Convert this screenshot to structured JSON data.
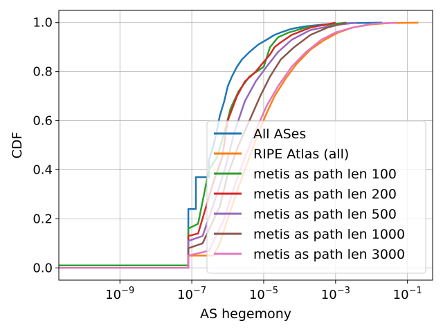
{
  "chart_data": {
    "type": "line",
    "xlabel": "AS hegemony",
    "ylabel": "CDF",
    "xscale": "log",
    "xlim": [
      2e-11,
      0.5
    ],
    "ylim": [
      -0.05,
      1.05
    ],
    "x_ticks": [
      1e-09,
      1e-07,
      1e-05,
      0.001,
      0.1
    ],
    "x_tick_labels": [
      {
        "base": "10",
        "exp": "−9"
      },
      {
        "base": "10",
        "exp": "−7"
      },
      {
        "base": "10",
        "exp": "−5"
      },
      {
        "base": "10",
        "exp": "−3"
      },
      {
        "base": "10",
        "exp": "−1"
      }
    ],
    "y_ticks": [
      0.0,
      0.2,
      0.4,
      0.6,
      0.8,
      1.0
    ],
    "y_tick_labels": [
      "0.0",
      "0.2",
      "0.4",
      "0.6",
      "0.8",
      "1.0"
    ],
    "grid": true,
    "legend_position": "lower-right",
    "series": [
      {
        "name": "All ASes",
        "color": "#1f77b4",
        "points": [
          [
            2e-11,
            0.0
          ],
          [
            8e-08,
            0.0
          ],
          [
            8e-08,
            0.24
          ],
          [
            1.3e-07,
            0.24
          ],
          [
            1.3e-07,
            0.37
          ],
          [
            3e-07,
            0.37
          ],
          [
            3e-07,
            0.44
          ],
          [
            4e-07,
            0.5
          ],
          [
            5e-07,
            0.56
          ],
          [
            6e-07,
            0.62
          ],
          [
            8e-07,
            0.68
          ],
          [
            1e-06,
            0.74
          ],
          [
            1.3e-06,
            0.78
          ],
          [
            1.8e-06,
            0.82
          ],
          [
            2.5e-06,
            0.85
          ],
          [
            4e-06,
            0.88
          ],
          [
            7e-06,
            0.91
          ],
          [
            1.2e-05,
            0.93
          ],
          [
            2e-05,
            0.95
          ],
          [
            3e-05,
            0.96
          ],
          [
            6e-05,
            0.975
          ],
          [
            0.00015,
            0.985
          ],
          [
            0.0005,
            0.993
          ],
          [
            0.003,
            0.998
          ],
          [
            0.02,
            1.0
          ]
        ]
      },
      {
        "name": "RIPE Atlas (all)",
        "color": "#ff7f0e",
        "points": [
          [
            2e-11,
            0.0
          ],
          [
            8e-08,
            0.0
          ],
          [
            8e-08,
            0.05
          ],
          [
            4e-07,
            0.05
          ],
          [
            6e-07,
            0.1
          ],
          [
            1e-06,
            0.2
          ],
          [
            2e-06,
            0.33
          ],
          [
            4e-06,
            0.45
          ],
          [
            7e-06,
            0.55
          ],
          [
            1.2e-05,
            0.63
          ],
          [
            2e-05,
            0.7
          ],
          [
            4e-05,
            0.77
          ],
          [
            8e-05,
            0.83
          ],
          [
            0.0002,
            0.89
          ],
          [
            0.0005,
            0.93
          ],
          [
            0.0012,
            0.96
          ],
          [
            0.003,
            0.98
          ],
          [
            0.01,
            0.993
          ],
          [
            0.03,
            0.998
          ],
          [
            0.2,
            1.0
          ]
        ]
      },
      {
        "name": "metis as path len 100",
        "color": "#2ca02c",
        "points": [
          [
            2e-11,
            0.01
          ],
          [
            8e-08,
            0.01
          ],
          [
            8e-08,
            0.16
          ],
          [
            1.5e-07,
            0.18
          ],
          [
            3e-07,
            0.4
          ],
          [
            5e-07,
            0.45
          ],
          [
            8e-07,
            0.55
          ],
          [
            1.2e-06,
            0.65
          ],
          [
            2e-06,
            0.72
          ],
          [
            4e-06,
            0.78
          ],
          [
            1e-05,
            0.82
          ],
          [
            1.5e-05,
            0.9
          ],
          [
            2.5e-05,
            0.94
          ],
          [
            5e-05,
            0.96
          ],
          [
            0.00015,
            0.98
          ],
          [
            0.0005,
            0.99
          ],
          [
            0.002,
            1.0
          ]
        ]
      },
      {
        "name": "metis as path len 200",
        "color": "#d62728",
        "points": [
          [
            2e-11,
            0.0
          ],
          [
            8e-08,
            0.0
          ],
          [
            8e-08,
            0.13
          ],
          [
            1.5e-07,
            0.14
          ],
          [
            4e-07,
            0.35
          ],
          [
            7e-07,
            0.45
          ],
          [
            1e-06,
            0.6
          ],
          [
            1.8e-06,
            0.7
          ],
          [
            3e-06,
            0.76
          ],
          [
            6e-06,
            0.8
          ],
          [
            1e-05,
            0.84
          ],
          [
            1.5e-05,
            0.87
          ],
          [
            2e-05,
            0.9
          ],
          [
            3e-05,
            0.92
          ],
          [
            6e-05,
            0.95
          ],
          [
            0.0002,
            0.98
          ],
          [
            0.001,
            1.0
          ]
        ]
      },
      {
        "name": "metis as path len 500",
        "color": "#9467bd",
        "points": [
          [
            2e-11,
            0.0
          ],
          [
            8e-08,
            0.0
          ],
          [
            8e-08,
            0.11
          ],
          [
            2e-07,
            0.13
          ],
          [
            5e-07,
            0.3
          ],
          [
            9e-07,
            0.42
          ],
          [
            1.5e-06,
            0.55
          ],
          [
            3e-06,
            0.68
          ],
          [
            6e-06,
            0.76
          ],
          [
            1.2e-05,
            0.82
          ],
          [
            2.5e-05,
            0.88
          ],
          [
            6e-05,
            0.93
          ],
          [
            0.0002,
            0.97
          ],
          [
            0.001,
            0.99
          ],
          [
            0.004,
            1.0
          ]
        ]
      },
      {
        "name": "metis as path len 1000",
        "color": "#8c564b",
        "points": [
          [
            2e-11,
            0.0
          ],
          [
            8e-08,
            0.0
          ],
          [
            8e-08,
            0.08
          ],
          [
            2e-07,
            0.1
          ],
          [
            6e-07,
            0.25
          ],
          [
            1e-06,
            0.38
          ],
          [
            2e-06,
            0.5
          ],
          [
            4e-06,
            0.6
          ],
          [
            8e-06,
            0.7
          ],
          [
            1.5e-05,
            0.78
          ],
          [
            3e-05,
            0.85
          ],
          [
            7e-05,
            0.9
          ],
          [
            0.0002,
            0.95
          ],
          [
            0.0006,
            0.98
          ],
          [
            0.002,
            1.0
          ]
        ]
      },
      {
        "name": "metis as path len 3000",
        "color": "#e377c2",
        "points": [
          [
            2e-11,
            0.0
          ],
          [
            8e-08,
            0.0
          ],
          [
            8e-08,
            0.05
          ],
          [
            3e-07,
            0.07
          ],
          [
            8e-07,
            0.2
          ],
          [
            1.5e-06,
            0.33
          ],
          [
            3e-06,
            0.45
          ],
          [
            6e-06,
            0.56
          ],
          [
            1.2e-05,
            0.66
          ],
          [
            2.5e-05,
            0.74
          ],
          [
            6e-05,
            0.82
          ],
          [
            0.00015,
            0.88
          ],
          [
            0.0004,
            0.93
          ],
          [
            0.001,
            0.96
          ],
          [
            0.003,
            0.98
          ],
          [
            0.01,
            0.995
          ],
          [
            0.05,
            1.0
          ]
        ]
      }
    ]
  }
}
